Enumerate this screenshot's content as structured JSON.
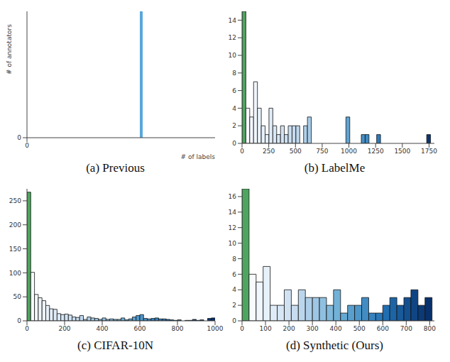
{
  "chart_data": [
    {
      "type": "histogram",
      "title": "(a) Previous",
      "xlabel": "# of labels",
      "ylabel": "# of annotators",
      "bins": [
        0.6,
        0.615
      ],
      "counts": [
        1
      ],
      "color": "#5aa7db",
      "xlim": [
        0,
        1
      ],
      "ylim": [
        0,
        1
      ],
      "xticks": [
        0
      ],
      "yticks": [
        0
      ]
    },
    {
      "type": "histogram",
      "title": "(b) LabelMe",
      "bins": [
        0,
        36,
        72,
        108,
        144,
        180,
        216,
        252,
        288,
        324,
        360,
        396,
        432,
        468,
        504,
        540,
        576,
        612,
        648,
        684,
        720,
        756,
        792,
        828,
        864,
        900,
        936,
        972,
        1008,
        1044,
        1080,
        1116,
        1152,
        1188,
        1224,
        1260,
        1296,
        1332,
        1368,
        1404,
        1440,
        1476,
        1512,
        1548,
        1584,
        1620,
        1656,
        1692,
        1728,
        1764,
        1800
      ],
      "counts": [
        15,
        4,
        3,
        7,
        4,
        2,
        1,
        4,
        2,
        1,
        2,
        1,
        2,
        2,
        2,
        0,
        2,
        3,
        0,
        0,
        0,
        0,
        0,
        0,
        0,
        0,
        0,
        3,
        0,
        0,
        0,
        1,
        1,
        0,
        0,
        1,
        0,
        0,
        0,
        0,
        0,
        0,
        0,
        0,
        0,
        0,
        0,
        0,
        1,
        0
      ],
      "xlim": [
        0,
        1800
      ],
      "ylim": [
        0,
        15
      ],
      "xticks": [
        0,
        250,
        500,
        750,
        1000,
        1250,
        1500,
        1750
      ],
      "yticks": [
        0,
        2,
        4,
        6,
        8,
        10,
        12,
        14
      ]
    },
    {
      "type": "histogram",
      "title": "(c) CIFAR-10N",
      "bins": [
        0,
        20,
        40,
        60,
        80,
        100,
        120,
        140,
        160,
        180,
        200,
        220,
        240,
        260,
        280,
        300,
        320,
        340,
        360,
        380,
        400,
        420,
        440,
        460,
        480,
        500,
        520,
        540,
        560,
        580,
        600,
        620,
        640,
        660,
        680,
        700,
        720,
        740,
        760,
        780,
        800,
        820,
        840,
        860,
        880,
        900,
        920,
        940,
        960,
        980,
        1000
      ],
      "counts": [
        268,
        101,
        55,
        48,
        42,
        32,
        25,
        24,
        15,
        13,
        14,
        12,
        8,
        7,
        11,
        3,
        8,
        6,
        5,
        3,
        6,
        3,
        4,
        3,
        3,
        6,
        2,
        4,
        8,
        11,
        13,
        5,
        4,
        5,
        6,
        4,
        4,
        3,
        2,
        1,
        2,
        0,
        1,
        1,
        3,
        1,
        2,
        0,
        5,
        6
      ],
      "xlim": [
        0,
        1000
      ],
      "ylim": [
        0,
        275
      ],
      "xticks": [
        0,
        200,
        400,
        600,
        800,
        1000
      ],
      "yticks": [
        0,
        50,
        100,
        150,
        200,
        250
      ]
    },
    {
      "type": "histogram",
      "title": "(d) Synthetic (Ours)",
      "bins": [
        0,
        30,
        60,
        90,
        120,
        150,
        180,
        210,
        240,
        270,
        300,
        330,
        360,
        390,
        420,
        450,
        480,
        510,
        540,
        570,
        600,
        630,
        660,
        690,
        720,
        750,
        780,
        810
      ],
      "counts": [
        17,
        6,
        5,
        7,
        2,
        2,
        4,
        2,
        4,
        3,
        3,
        3,
        2,
        4,
        1,
        2,
        2,
        3,
        1,
        1,
        2,
        3,
        2,
        3,
        4,
        2,
        3
      ],
      "xlim": [
        0,
        820
      ],
      "ylim": [
        0,
        17
      ],
      "xticks": [
        0,
        100,
        200,
        300,
        400,
        500,
        600,
        700,
        800
      ],
      "yticks": [
        0,
        2,
        4,
        6,
        8,
        10,
        12,
        14,
        16
      ]
    }
  ]
}
